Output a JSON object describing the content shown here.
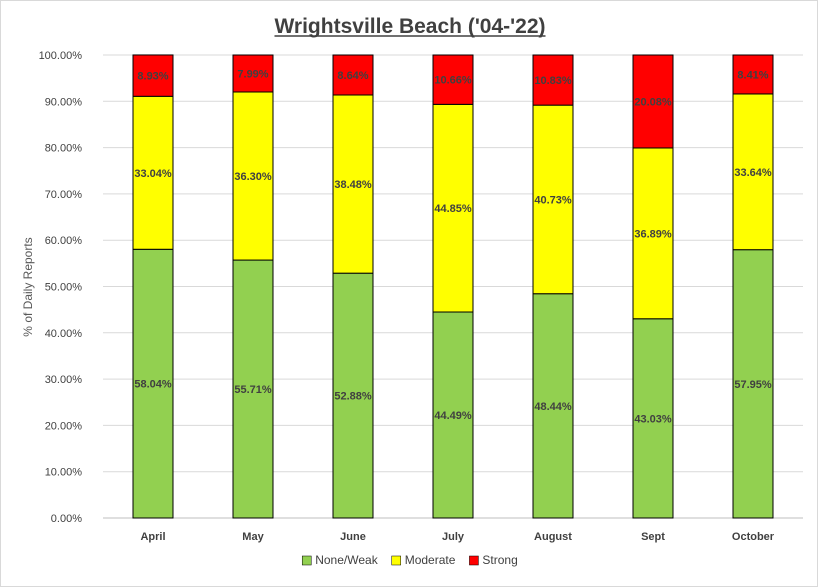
{
  "chart_data": {
    "type": "bar",
    "stacked": true,
    "title": "Wrightsville Beach ('04-'22)",
    "ylabel": "% of Daily Reports",
    "xlabel": "",
    "categories": [
      "April",
      "May",
      "June",
      "July",
      "August",
      "Sept",
      "October"
    ],
    "ylim": [
      0,
      100
    ],
    "yticks": [
      0,
      10,
      20,
      30,
      40,
      50,
      60,
      70,
      80,
      90,
      100
    ],
    "ytick_labels": [
      "0.00%",
      "10.00%",
      "20.00%",
      "30.00%",
      "40.00%",
      "50.00%",
      "60.00%",
      "70.00%",
      "80.00%",
      "90.00%",
      "100.00%"
    ],
    "grid": true,
    "legend_position": "bottom",
    "series": [
      {
        "name": "None/Weak",
        "color": "#92d050",
        "values": [
          58.04,
          55.71,
          52.88,
          44.49,
          48.44,
          43.03,
          57.95
        ],
        "labels": [
          "58.04%",
          "55.71%",
          "52.88%",
          "44.49%",
          "48.44%",
          "43.03%",
          "57.95%"
        ]
      },
      {
        "name": "Moderate",
        "color": "#ffff00",
        "values": [
          33.04,
          36.3,
          38.48,
          44.85,
          40.73,
          36.89,
          33.64
        ],
        "labels": [
          "33.04%",
          "36.30%",
          "38.48%",
          "44.85%",
          "40.73%",
          "36.89%",
          "33.64%"
        ]
      },
      {
        "name": "Strong",
        "color": "#ff0000",
        "values": [
          8.93,
          7.99,
          8.64,
          10.66,
          10.83,
          20.08,
          8.41
        ],
        "labels": [
          "8.93%",
          "7.99%",
          "8.64%",
          "10.66%",
          "10.83%",
          "20.08%",
          "8.41%"
        ]
      }
    ]
  }
}
